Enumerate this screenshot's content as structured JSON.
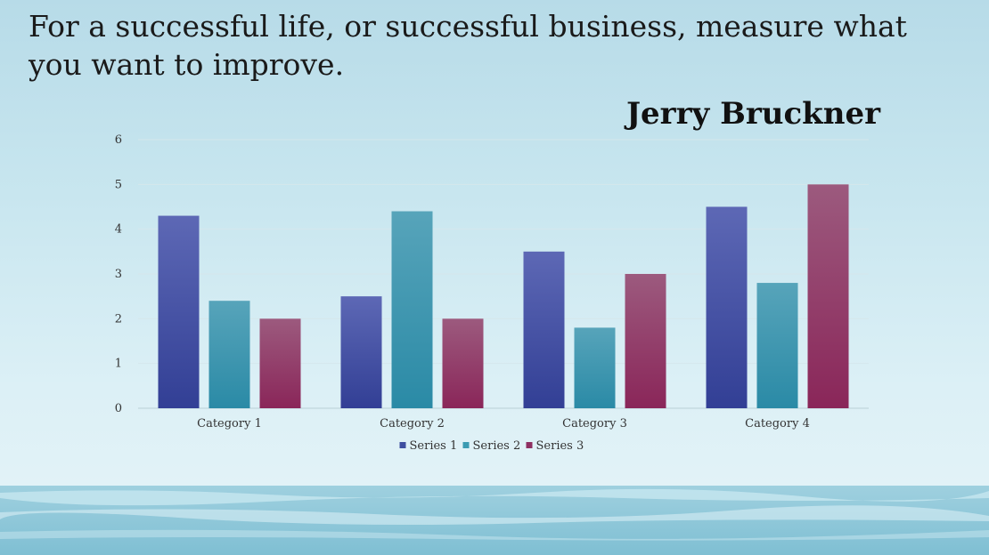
{
  "quote": {
    "text": "For a successful life, or successful business, measure what you want to improve.",
    "author": "Jerry Bruckner"
  },
  "colors": {
    "series1": "#3e4fa0",
    "series2": "#3b9bb2",
    "series3": "#8e3062"
  },
  "chart_data": {
    "type": "bar",
    "categories": [
      "Category 1",
      "Category 2",
      "Category 3",
      "Category 4"
    ],
    "series": [
      {
        "name": "Series 1",
        "values": [
          4.3,
          2.5,
          3.5,
          4.5
        ]
      },
      {
        "name": "Series 2",
        "values": [
          2.4,
          4.4,
          1.8,
          2.8
        ]
      },
      {
        "name": "Series 3",
        "values": [
          2,
          2,
          3,
          5
        ]
      }
    ],
    "ylim": [
      0,
      6
    ],
    "yticks": [
      "0",
      "1",
      "2",
      "3",
      "4",
      "5",
      "6"
    ],
    "grid": true,
    "legend": "bottom-center"
  }
}
